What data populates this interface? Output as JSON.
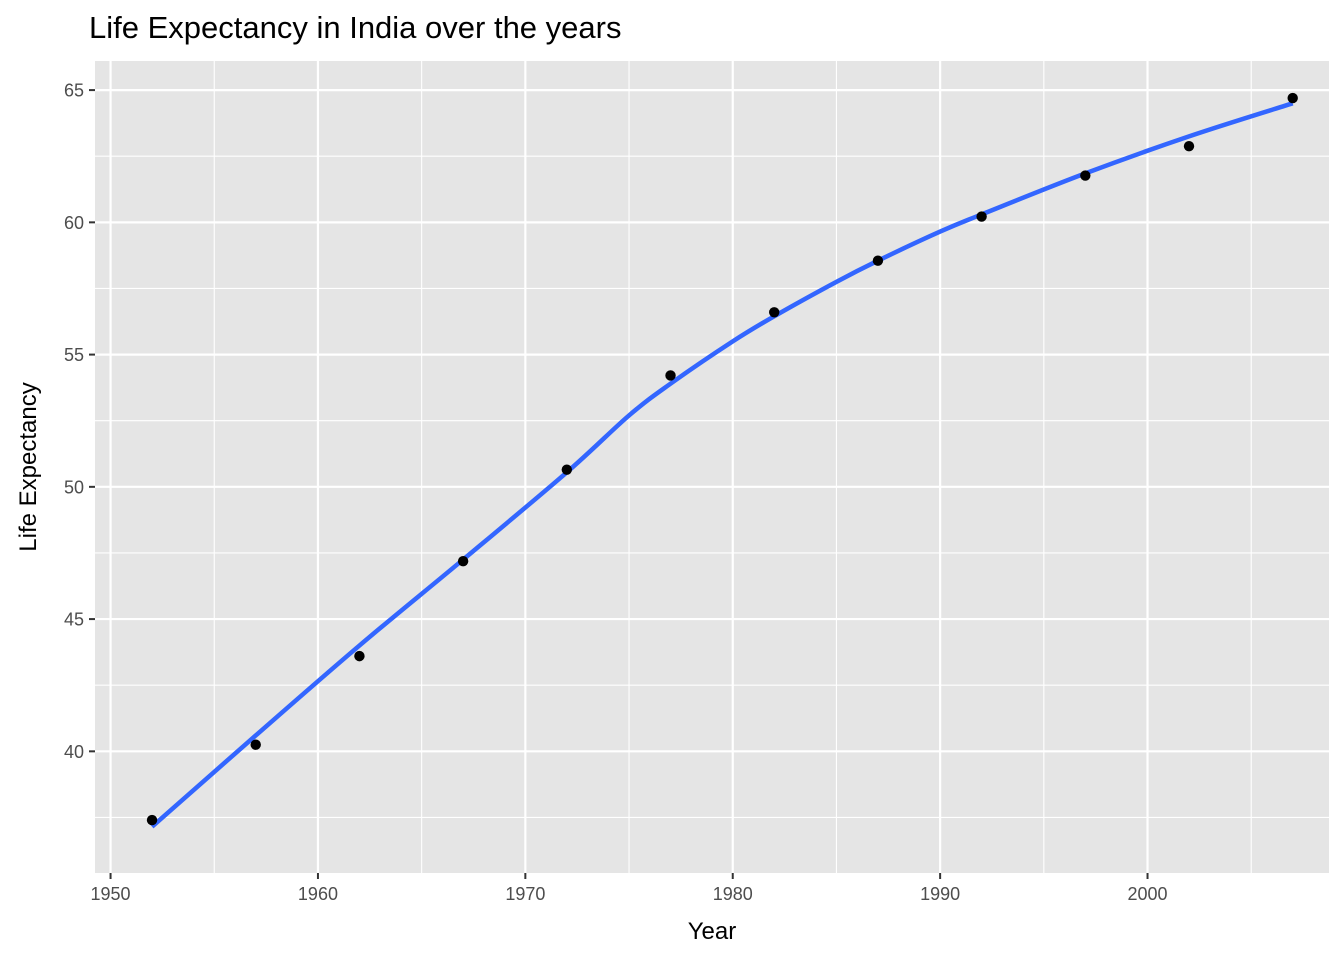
{
  "chart_data": {
    "type": "scatter",
    "title": "Life Expectancy in India over the years",
    "xlabel": "Year",
    "ylabel": "Life Expectancy",
    "xlim": [
      1949.25,
      2008.75
    ],
    "ylim": [
      35.4,
      66.1
    ],
    "x_ticks": [
      1950,
      1960,
      1970,
      1980,
      1990,
      2000
    ],
    "y_ticks": [
      40,
      45,
      50,
      55,
      60,
      65
    ],
    "grid": true,
    "legend": "none",
    "point_color": "#000000",
    "line_color": "#3366ff",
    "panel_color": "#e5e5e5",
    "points": {
      "x": [
        1952,
        1957,
        1962,
        1967,
        1972,
        1977,
        1982,
        1987,
        1992,
        1997,
        2002,
        2007
      ],
      "y": [
        37.4,
        40.25,
        43.6,
        47.19,
        50.65,
        54.21,
        56.6,
        58.55,
        60.22,
        61.77,
        62.88,
        64.7
      ]
    },
    "smooth_line": {
      "x": [
        1952,
        1957,
        1962,
        1967,
        1972,
        1975,
        1977,
        1980,
        1982,
        1985,
        1987,
        1990,
        1992,
        1997,
        2002,
        2007
      ],
      "y": [
        37.15,
        40.6,
        44.0,
        47.25,
        50.55,
        52.7,
        53.9,
        55.5,
        56.45,
        57.75,
        58.55,
        59.65,
        60.3,
        61.85,
        63.25,
        64.5
      ]
    }
  }
}
